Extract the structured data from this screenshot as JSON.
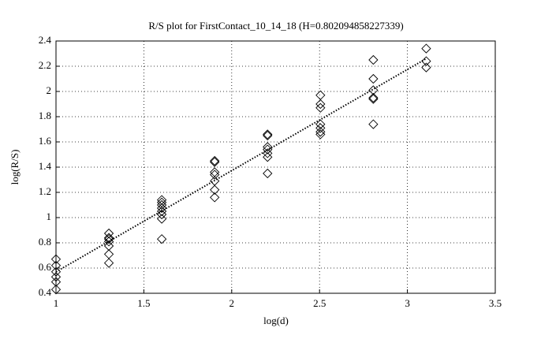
{
  "chart_data": {
    "type": "scatter",
    "title": "R/S plot for FirstContact_10_14_18 (H=0.802094858227339)",
    "x_label": "log(d)",
    "y_label": "log(R/S)",
    "x": [
      1,
      1,
      1,
      1,
      1,
      1,
      1.301,
      1.301,
      1.301,
      1.301,
      1.301,
      1.301,
      1.301,
      1.602,
      1.602,
      1.602,
      1.602,
      1.602,
      1.602,
      1.602,
      1.602,
      1.903,
      1.903,
      1.903,
      1.903,
      1.903,
      1.903,
      1.903,
      2.204,
      2.204,
      2.204,
      2.204,
      2.204,
      2.204,
      2.204,
      2.505,
      2.505,
      2.505,
      2.505,
      2.505,
      2.505,
      2.505,
      2.806,
      2.806,
      2.806,
      2.806,
      2.806,
      2.806,
      3.107,
      3.107,
      3.107
    ],
    "y": [
      0.67,
      0.62,
      0.57,
      0.53,
      0.49,
      0.43,
      0.875,
      0.84,
      0.83,
      0.81,
      0.775,
      0.71,
      0.64,
      1.14,
      1.12,
      1.1,
      1.075,
      1.05,
      1.025,
      0.99,
      0.83,
      1.45,
      1.44,
      1.36,
      1.34,
      1.29,
      1.22,
      1.16,
      1.66,
      1.65,
      1.56,
      1.54,
      1.51,
      1.48,
      1.35,
      1.97,
      1.9,
      1.87,
      1.74,
      1.71,
      1.68,
      1.66,
      2.25,
      2.1,
      2.01,
      1.95,
      1.94,
      1.74,
      2.34,
      2.24,
      2.19
    ],
    "color": "#000000",
    "fit_line": {
      "x": [
        1,
        3.107
      ],
      "y": [
        0.57,
        2.26
      ]
    },
    "xlim": [
      1,
      3.5
    ],
    "xticks": [
      1,
      1.5,
      2,
      2.5,
      3,
      3.5
    ],
    "ylim": [
      0.4,
      2.4
    ],
    "yticks": [
      0.4,
      0.6,
      0.8,
      1,
      1.2,
      1.4,
      1.6,
      1.8,
      2,
      2.2,
      2.4
    ],
    "grid": true
  }
}
